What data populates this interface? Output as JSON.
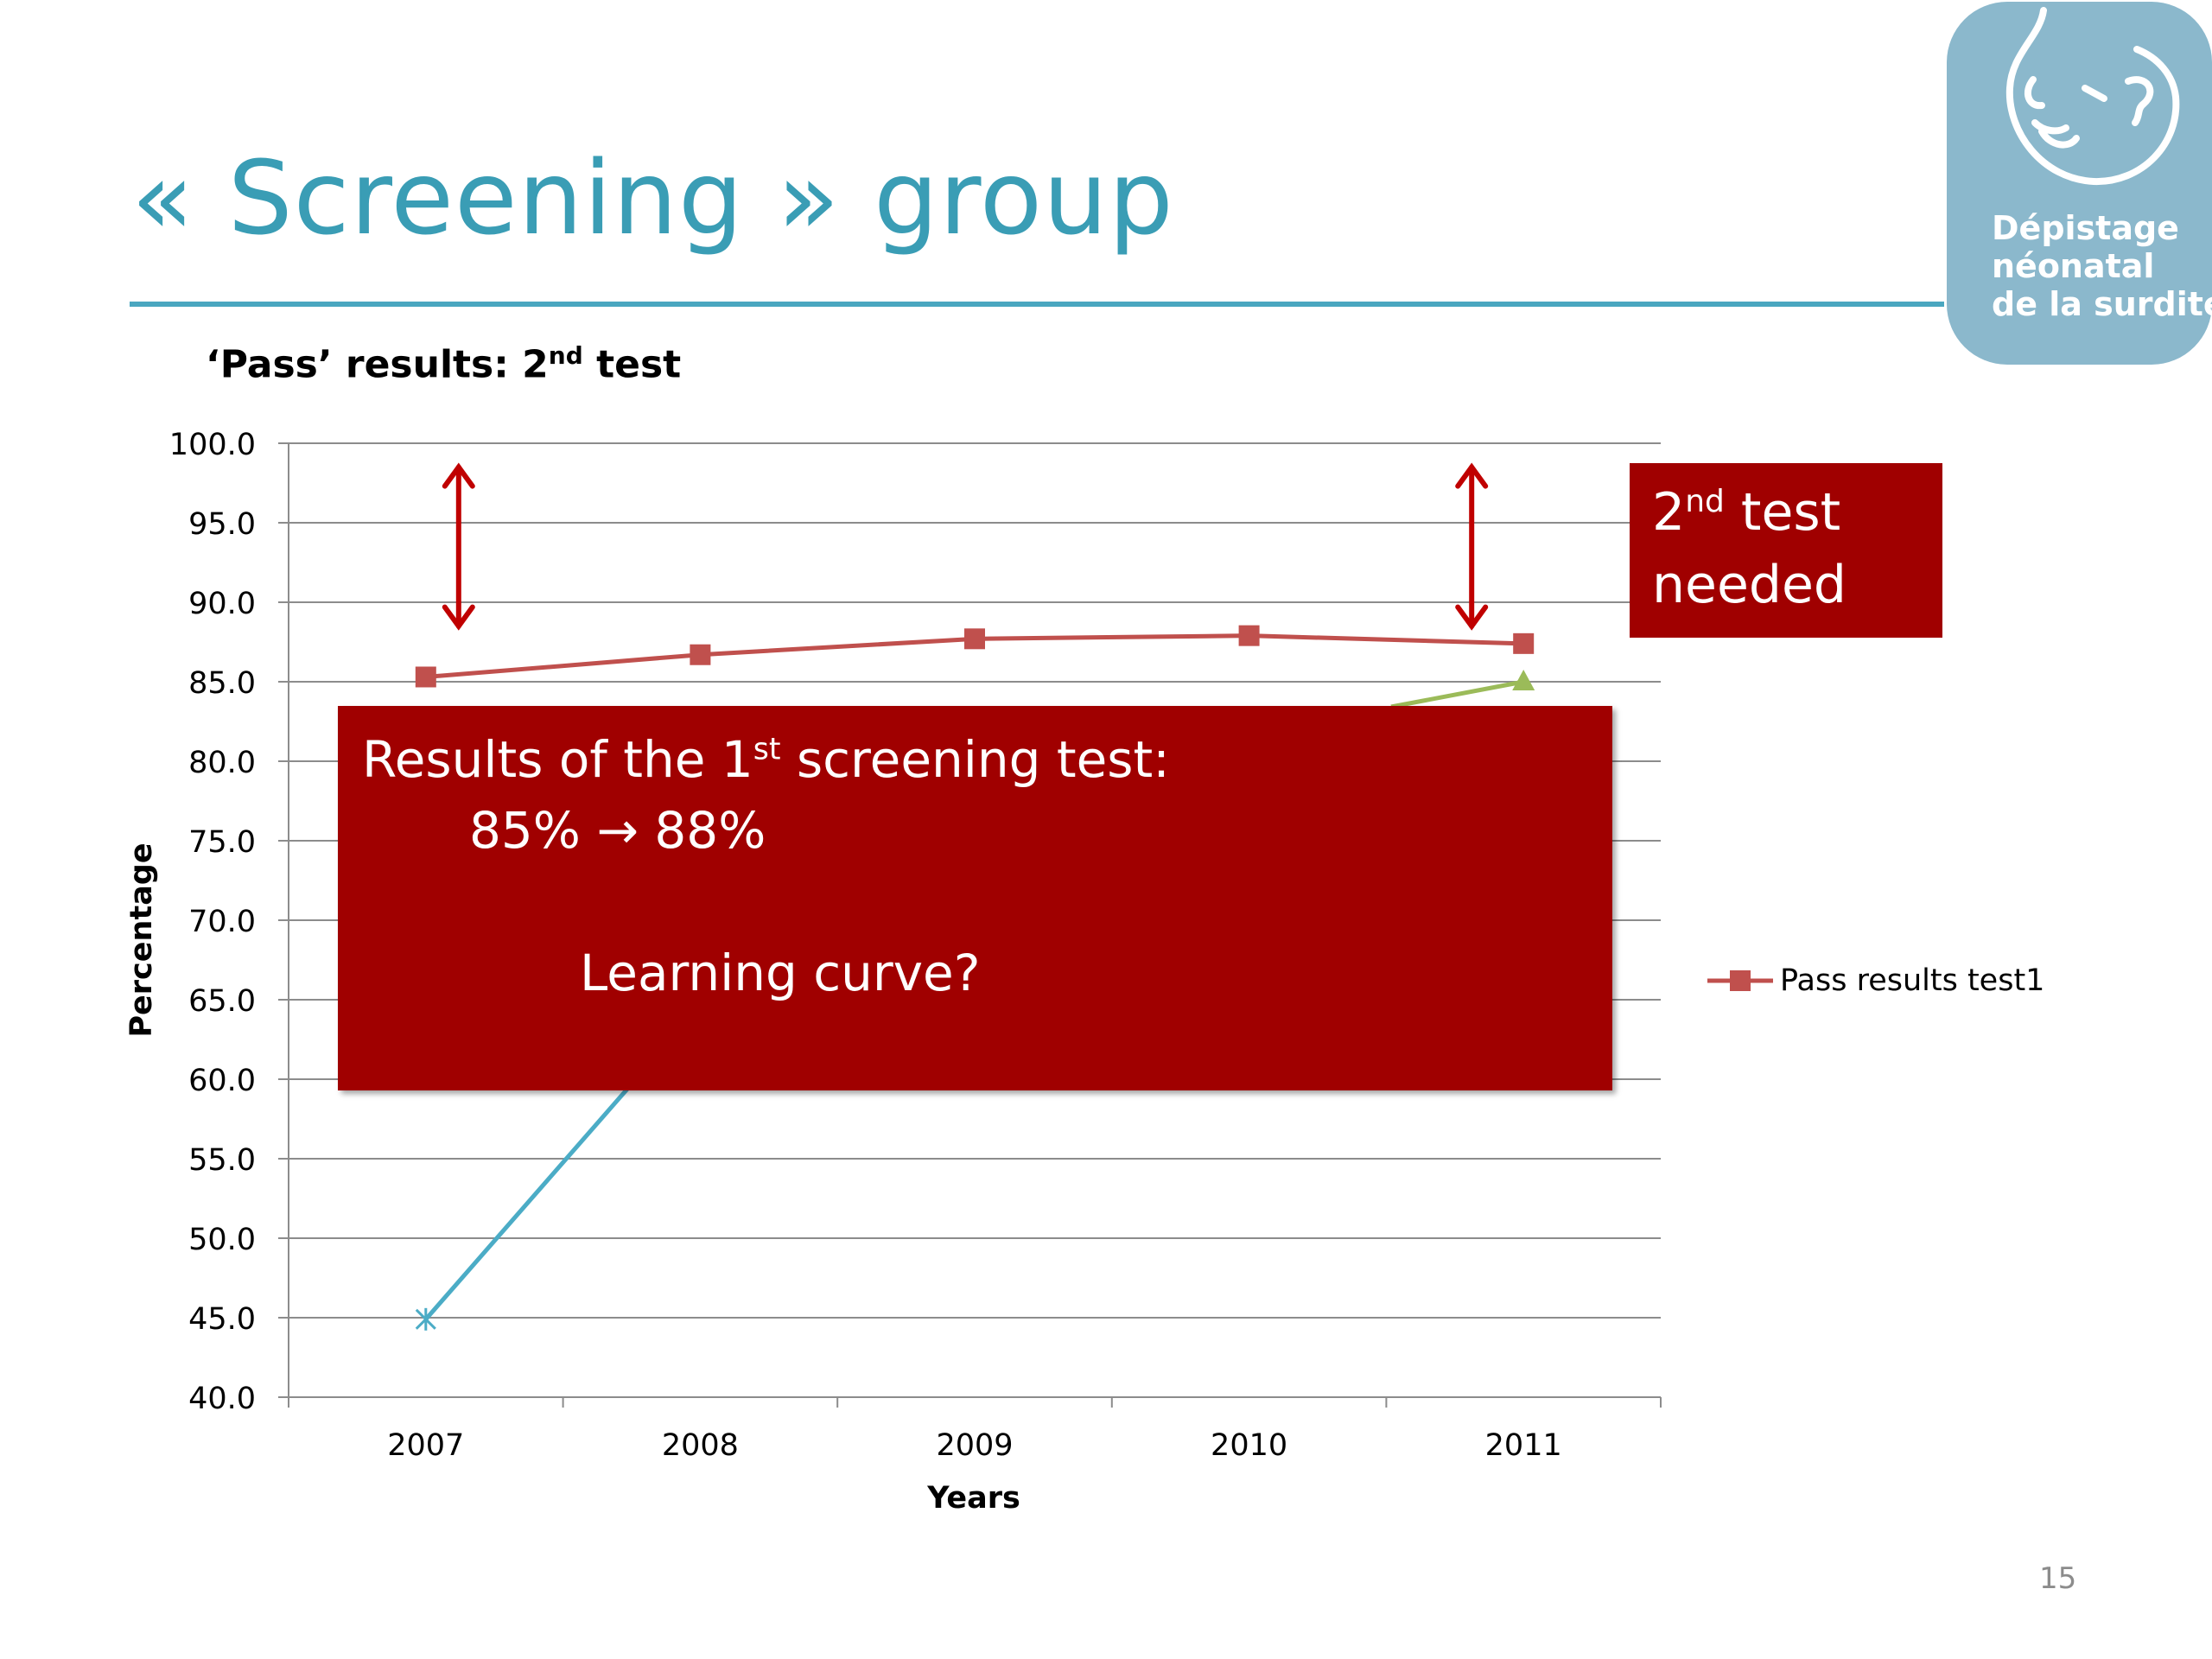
{
  "slide": {
    "title": "« Screening » group",
    "page_number": "15"
  },
  "logo": {
    "lines": [
      "Dépistage",
      "néonatal",
      "de la surdité"
    ],
    "color": "#8bb8cc"
  },
  "callouts": {
    "main": {
      "line1_prefix": "Results of the 1",
      "line1_sup": "st",
      "line1_suffix": " screening test:",
      "line2": "85% → 88%",
      "line3": "Learning curve?"
    },
    "side": {
      "line1_prefix": "2",
      "line1_sup": "nd",
      "line1_suffix": " test",
      "line2": "needed"
    },
    "color": "#a00000"
  },
  "chart_data": {
    "type": "line",
    "title_prefix": "‘Pass’ results: 2",
    "title_sup": "nd",
    "title_suffix": " test",
    "xlabel": "Years",
    "ylabel": "Percentage",
    "ylim": [
      40.0,
      100.0
    ],
    "y_ticks": [
      "40.0",
      "45.0",
      "50.0",
      "55.0",
      "60.0",
      "65.0",
      "70.0",
      "75.0",
      "80.0",
      "85.0",
      "90.0",
      "95.0",
      "100.0"
    ],
    "categories": [
      "2007",
      "2008",
      "2009",
      "2010",
      "2011"
    ],
    "grid": true,
    "legend_position": "right",
    "series": [
      {
        "name": "Pass results test1",
        "color": "#c0504d",
        "marker": "square",
        "values": [
          85.3,
          86.7,
          87.7,
          87.9,
          87.4
        ]
      },
      {
        "color": "#4bacc6",
        "marker": "star",
        "values": [
          44.9,
          null,
          null,
          null,
          null
        ]
      },
      {
        "color": "#9bbb59",
        "marker": "triangle",
        "values": [
          null,
          null,
          null,
          null,
          85.0
        ]
      }
    ],
    "annotations": {
      "double_arrows": [
        {
          "category": "2007",
          "from": 98.5,
          "to": 88.5
        },
        {
          "category": "2011",
          "from": 98.5,
          "to": 88.5
        }
      ],
      "arrow_color": "#c00000"
    }
  }
}
